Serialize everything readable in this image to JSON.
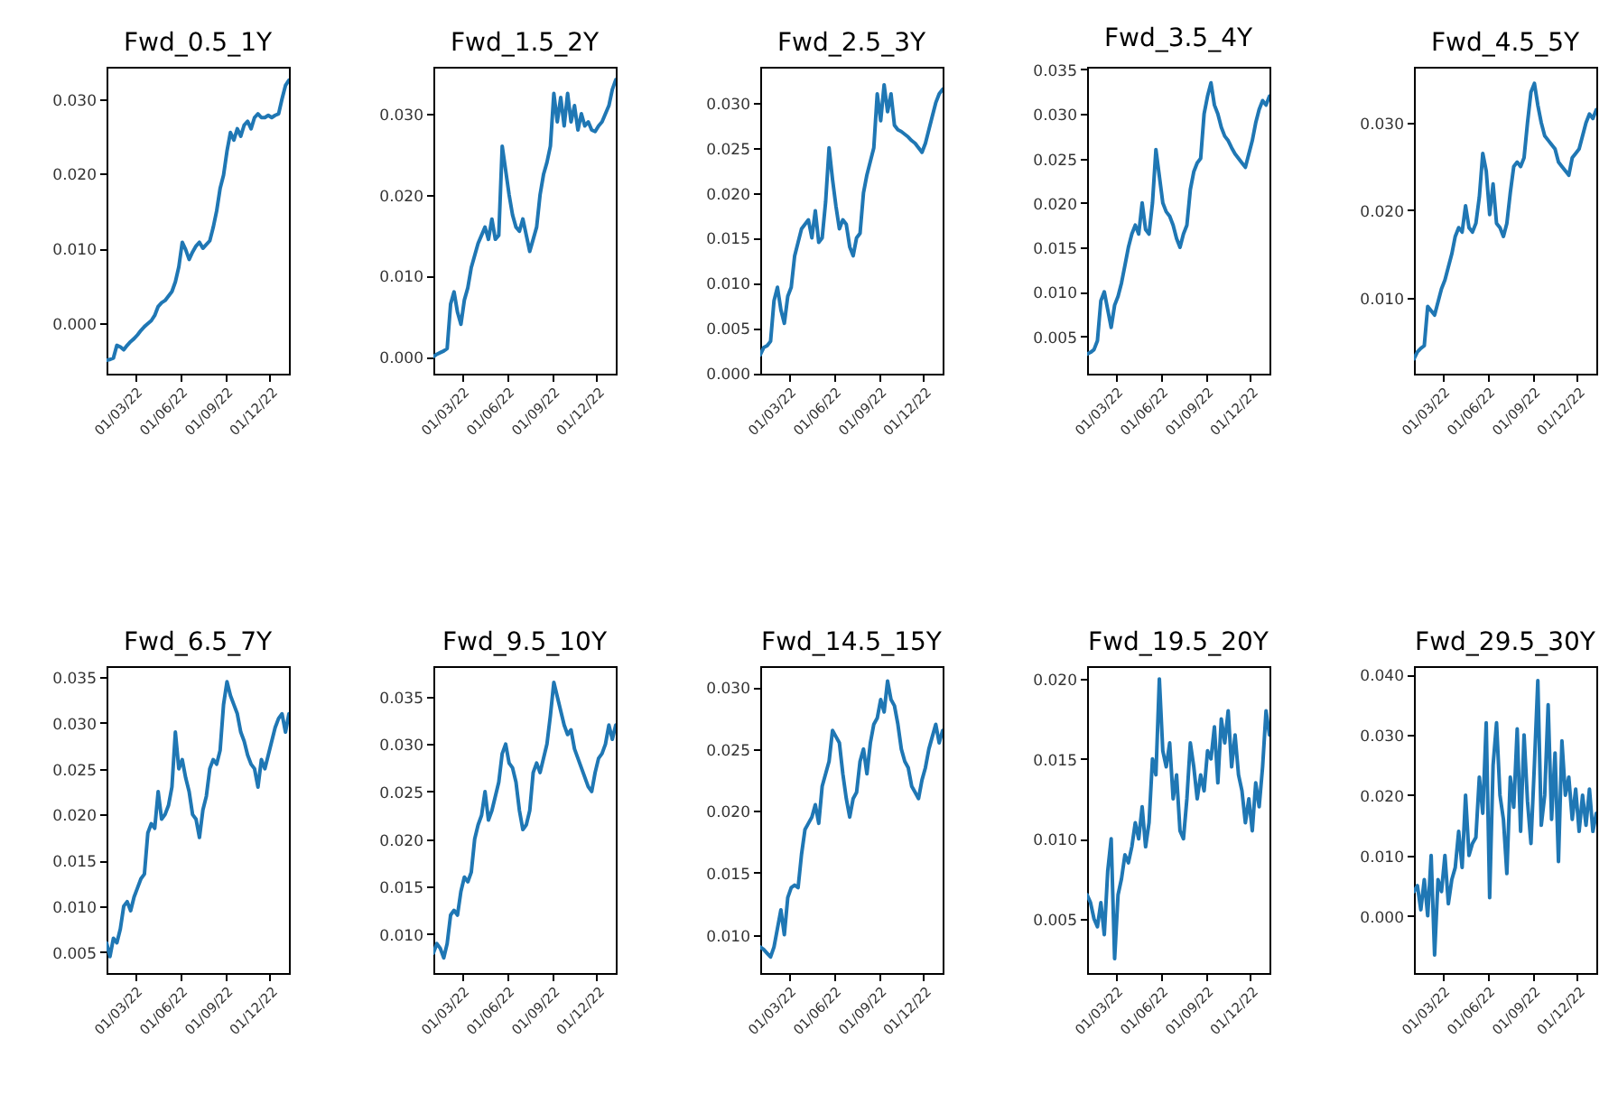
{
  "chart_data": [
    {
      "type": "line",
      "title": "Fwd_0.5_1Y",
      "color": "#1f77b4",
      "x": [
        "2022-01-03",
        "2022-01-10",
        "2022-01-17",
        "2022-01-24",
        "2022-01-31",
        "2022-02-07",
        "2022-02-14",
        "2022-02-21",
        "2022-02-28",
        "2022-03-07",
        "2022-03-14",
        "2022-03-21",
        "2022-03-28",
        "2022-04-04",
        "2022-04-11",
        "2022-04-18",
        "2022-04-25",
        "2022-05-02",
        "2022-05-09",
        "2022-05-16",
        "2022-05-23",
        "2022-05-30",
        "2022-06-06",
        "2022-06-13",
        "2022-06-20",
        "2022-06-27",
        "2022-07-04",
        "2022-07-11",
        "2022-07-18",
        "2022-07-25",
        "2022-08-01",
        "2022-08-08",
        "2022-08-15",
        "2022-08-22",
        "2022-08-29",
        "2022-09-05",
        "2022-09-12",
        "2022-09-19",
        "2022-09-26",
        "2022-10-03",
        "2022-10-10",
        "2022-10-17",
        "2022-10-24",
        "2022-10-31",
        "2022-11-07",
        "2022-11-14",
        "2022-11-21",
        "2022-11-28",
        "2022-12-05",
        "2022-12-12",
        "2022-12-19",
        "2022-12-26",
        "2023-01-02",
        "2023-01-09"
      ],
      "values": [
        -0.005,
        -0.0049,
        -0.0047,
        -0.003,
        -0.0032,
        -0.0036,
        -0.003,
        -0.0025,
        -0.0021,
        -0.0016,
        -0.001,
        -0.0005,
        -0.0001,
        0.0003,
        0.001,
        0.0022,
        0.0027,
        0.003,
        0.0036,
        0.0042,
        0.0055,
        0.0075,
        0.0108,
        0.0098,
        0.0085,
        0.0095,
        0.0103,
        0.0108,
        0.01,
        0.0105,
        0.011,
        0.0128,
        0.015,
        0.018,
        0.0198,
        0.023,
        0.0255,
        0.0245,
        0.026,
        0.025,
        0.0265,
        0.027,
        0.026,
        0.0275,
        0.028,
        0.0275,
        0.0275,
        0.0278,
        0.0275,
        0.0278,
        0.028,
        0.03,
        0.0318,
        0.0325
      ],
      "xlim": [
        "2022-01-03",
        "2023-01-09"
      ],
      "xticks": [
        {
          "value": "2022-03-01",
          "label": "01/03/22"
        },
        {
          "value": "2022-06-01",
          "label": "01/06/22"
        },
        {
          "value": "2022-09-01",
          "label": "01/09/22"
        },
        {
          "value": "2022-12-01",
          "label": "01/12/22"
        }
      ],
      "ylim": [
        -0.0068,
        0.0343
      ],
      "yticks": [
        {
          "value": 0,
          "label": "0.000"
        },
        {
          "value": 0.01,
          "label": "0.010"
        },
        {
          "value": 0.02,
          "label": "0.020"
        },
        {
          "value": 0.03,
          "label": "0.030"
        }
      ]
    },
    {
      "type": "line",
      "title": "Fwd_1.5_2Y",
      "color": "#1f77b4",
      "x": [
        "2022-01-03",
        "2022-01-10",
        "2022-01-17",
        "2022-01-24",
        "2022-01-31",
        "2022-02-07",
        "2022-02-14",
        "2022-02-21",
        "2022-02-28",
        "2022-03-07",
        "2022-03-14",
        "2022-03-21",
        "2022-03-28",
        "2022-04-04",
        "2022-04-11",
        "2022-04-18",
        "2022-04-25",
        "2022-05-02",
        "2022-05-09",
        "2022-05-16",
        "2022-05-23",
        "2022-05-30",
        "2022-06-06",
        "2022-06-13",
        "2022-06-20",
        "2022-06-27",
        "2022-07-04",
        "2022-07-11",
        "2022-07-18",
        "2022-07-25",
        "2022-08-01",
        "2022-08-08",
        "2022-08-15",
        "2022-08-22",
        "2022-08-29",
        "2022-09-05",
        "2022-09-12",
        "2022-09-19",
        "2022-09-26",
        "2022-10-03",
        "2022-10-10",
        "2022-10-17",
        "2022-10-24",
        "2022-10-31",
        "2022-11-07",
        "2022-11-14",
        "2022-11-21",
        "2022-11-28",
        "2022-12-05",
        "2022-12-12",
        "2022-12-19",
        "2022-12-26",
        "2023-01-02",
        "2023-01-09"
      ],
      "values": [
        0,
        0.0003,
        0.0005,
        0.0007,
        0.001,
        0.0065,
        0.008,
        0.0055,
        0.004,
        0.007,
        0.0085,
        0.011,
        0.0125,
        0.014,
        0.015,
        0.016,
        0.0145,
        0.017,
        0.0145,
        0.015,
        0.026,
        0.023,
        0.02,
        0.0175,
        0.016,
        0.0155,
        0.017,
        0.015,
        0.013,
        0.0145,
        0.016,
        0.02,
        0.0225,
        0.024,
        0.026,
        0.0325,
        0.029,
        0.032,
        0.0285,
        0.0325,
        0.029,
        0.031,
        0.028,
        0.03,
        0.0285,
        0.029,
        0.028,
        0.0278,
        0.0285,
        0.029,
        0.03,
        0.031,
        0.033,
        0.0342
      ],
      "xlim": [
        "2022-01-03",
        "2023-01-09"
      ],
      "xticks": [
        {
          "value": "2022-03-01",
          "label": "01/03/22"
        },
        {
          "value": "2022-06-01",
          "label": "01/06/22"
        },
        {
          "value": "2022-09-01",
          "label": "01/09/22"
        },
        {
          "value": "2022-12-01",
          "label": "01/12/22"
        }
      ],
      "ylim": [
        -0.0021,
        0.0358
      ],
      "yticks": [
        {
          "value": 0,
          "label": "0.000"
        },
        {
          "value": 0.01,
          "label": "0.010"
        },
        {
          "value": 0.02,
          "label": "0.020"
        },
        {
          "value": 0.03,
          "label": "0.030"
        }
      ]
    },
    {
      "type": "line",
      "title": "Fwd_2.5_3Y",
      "color": "#1f77b4",
      "x": [
        "2022-01-03",
        "2022-01-10",
        "2022-01-17",
        "2022-01-24",
        "2022-01-31",
        "2022-02-07",
        "2022-02-14",
        "2022-02-21",
        "2022-02-28",
        "2022-03-07",
        "2022-03-14",
        "2022-03-21",
        "2022-03-28",
        "2022-04-04",
        "2022-04-11",
        "2022-04-18",
        "2022-04-25",
        "2022-05-02",
        "2022-05-09",
        "2022-05-16",
        "2022-05-23",
        "2022-05-30",
        "2022-06-06",
        "2022-06-13",
        "2022-06-20",
        "2022-06-27",
        "2022-07-04",
        "2022-07-11",
        "2022-07-18",
        "2022-07-25",
        "2022-08-01",
        "2022-08-08",
        "2022-08-15",
        "2022-08-22",
        "2022-08-29",
        "2022-09-05",
        "2022-09-12",
        "2022-09-19",
        "2022-09-26",
        "2022-10-03",
        "2022-10-10",
        "2022-10-17",
        "2022-10-24",
        "2022-10-31",
        "2022-11-07",
        "2022-11-14",
        "2022-11-21",
        "2022-11-28",
        "2022-12-05",
        "2022-12-12",
        "2022-12-19",
        "2022-12-26",
        "2023-01-02",
        "2023-01-09"
      ],
      "values": [
        0.002,
        0.0028,
        0.003,
        0.0035,
        0.008,
        0.0095,
        0.007,
        0.0055,
        0.0085,
        0.0095,
        0.013,
        0.0145,
        0.016,
        0.0165,
        0.017,
        0.015,
        0.018,
        0.0145,
        0.015,
        0.019,
        0.025,
        0.0215,
        0.0185,
        0.016,
        0.017,
        0.0165,
        0.014,
        0.013,
        0.015,
        0.0155,
        0.02,
        0.022,
        0.0235,
        0.025,
        0.031,
        0.028,
        0.032,
        0.029,
        0.031,
        0.0275,
        0.027,
        0.0268,
        0.0265,
        0.0262,
        0.0258,
        0.0255,
        0.025,
        0.0245,
        0.0255,
        0.027,
        0.0285,
        0.03,
        0.031,
        0.0315
      ],
      "xlim": [
        "2022-01-03",
        "2023-01-09"
      ],
      "xticks": [
        {
          "value": "2022-03-01",
          "label": "01/03/22"
        },
        {
          "value": "2022-06-01",
          "label": "01/06/22"
        },
        {
          "value": "2022-09-01",
          "label": "01/09/22"
        },
        {
          "value": "2022-12-01",
          "label": "01/12/22"
        }
      ],
      "ylim": [
        -0.0001,
        0.034
      ],
      "yticks": [
        {
          "value": 0,
          "label": "0.000"
        },
        {
          "value": 0.005,
          "label": "0.005"
        },
        {
          "value": 0.01,
          "label": "0.010"
        },
        {
          "value": 0.015,
          "label": "0.015"
        },
        {
          "value": 0.02,
          "label": "0.020"
        },
        {
          "value": 0.025,
          "label": "0.025"
        },
        {
          "value": 0.03,
          "label": "0.030"
        }
      ]
    },
    {
      "type": "line",
      "title": "Fwd_3.5_4Y",
      "color": "#1f77b4",
      "x": [
        "2022-01-03",
        "2022-01-10",
        "2022-01-17",
        "2022-01-24",
        "2022-01-31",
        "2022-02-07",
        "2022-02-14",
        "2022-02-21",
        "2022-02-28",
        "2022-03-07",
        "2022-03-14",
        "2022-03-21",
        "2022-03-28",
        "2022-04-04",
        "2022-04-11",
        "2022-04-18",
        "2022-04-25",
        "2022-05-02",
        "2022-05-09",
        "2022-05-16",
        "2022-05-23",
        "2022-05-30",
        "2022-06-06",
        "2022-06-13",
        "2022-06-20",
        "2022-06-27",
        "2022-07-04",
        "2022-07-11",
        "2022-07-18",
        "2022-07-25",
        "2022-08-01",
        "2022-08-08",
        "2022-08-15",
        "2022-08-22",
        "2022-08-29",
        "2022-09-05",
        "2022-09-12",
        "2022-09-19",
        "2022-09-26",
        "2022-10-03",
        "2022-10-10",
        "2022-10-17",
        "2022-10-24",
        "2022-10-31",
        "2022-11-07",
        "2022-11-14",
        "2022-11-21",
        "2022-11-28",
        "2022-12-05",
        "2022-12-12",
        "2022-12-19",
        "2022-12-26",
        "2023-01-02",
        "2023-01-09"
      ],
      "values": [
        0.003,
        0.0032,
        0.0035,
        0.0045,
        0.009,
        0.01,
        0.008,
        0.006,
        0.0085,
        0.0095,
        0.011,
        0.013,
        0.015,
        0.0165,
        0.0175,
        0.0165,
        0.02,
        0.017,
        0.0165,
        0.02,
        0.026,
        0.023,
        0.02,
        0.019,
        0.0185,
        0.0175,
        0.016,
        0.015,
        0.0165,
        0.0175,
        0.0215,
        0.0235,
        0.0245,
        0.025,
        0.03,
        0.032,
        0.0335,
        0.031,
        0.03,
        0.0285,
        0.0275,
        0.027,
        0.0262,
        0.0255,
        0.025,
        0.0245,
        0.024,
        0.0255,
        0.027,
        0.029,
        0.0305,
        0.0315,
        0.031,
        0.032
      ],
      "xlim": [
        "2022-01-03",
        "2023-01-09"
      ],
      "xticks": [
        {
          "value": "2022-03-01",
          "label": "01/03/22"
        },
        {
          "value": "2022-06-01",
          "label": "01/06/22"
        },
        {
          "value": "2022-09-01",
          "label": "01/09/22"
        },
        {
          "value": "2022-12-01",
          "label": "01/12/22"
        }
      ],
      "ylim": [
        0.0008,
        0.0353
      ],
      "yticks": [
        {
          "value": 0.005,
          "label": "0.005"
        },
        {
          "value": 0.01,
          "label": "0.010"
        },
        {
          "value": 0.015,
          "label": "0.015"
        },
        {
          "value": 0.02,
          "label": "0.020"
        },
        {
          "value": 0.025,
          "label": "0.025"
        },
        {
          "value": 0.03,
          "label": "0.030"
        },
        {
          "value": 0.035,
          "label": "0.035"
        }
      ]
    },
    {
      "type": "line",
      "title": "Fwd_4.5_5Y",
      "color": "#1f77b4",
      "x": [
        "2022-01-03",
        "2022-01-10",
        "2022-01-17",
        "2022-01-24",
        "2022-01-31",
        "2022-02-07",
        "2022-02-14",
        "2022-02-21",
        "2022-02-28",
        "2022-03-07",
        "2022-03-14",
        "2022-03-21",
        "2022-03-28",
        "2022-04-04",
        "2022-04-11",
        "2022-04-18",
        "2022-04-25",
        "2022-05-02",
        "2022-05-09",
        "2022-05-16",
        "2022-05-23",
        "2022-05-30",
        "2022-06-06",
        "2022-06-13",
        "2022-06-20",
        "2022-06-27",
        "2022-07-04",
        "2022-07-11",
        "2022-07-18",
        "2022-07-25",
        "2022-08-01",
        "2022-08-08",
        "2022-08-15",
        "2022-08-22",
        "2022-08-29",
        "2022-09-05",
        "2022-09-12",
        "2022-09-19",
        "2022-09-26",
        "2022-10-03",
        "2022-10-10",
        "2022-10-17",
        "2022-10-24",
        "2022-10-31",
        "2022-11-07",
        "2022-11-14",
        "2022-11-21",
        "2022-11-28",
        "2022-12-05",
        "2022-12-12",
        "2022-12-19",
        "2022-12-26",
        "2023-01-02",
        "2023-01-09"
      ],
      "values": [
        0.003,
        0.0038,
        0.0042,
        0.0045,
        0.009,
        0.0085,
        0.008,
        0.0095,
        0.011,
        0.012,
        0.0135,
        0.015,
        0.017,
        0.018,
        0.0175,
        0.0205,
        0.018,
        0.0175,
        0.0185,
        0.0215,
        0.0265,
        0.0245,
        0.0195,
        0.023,
        0.0185,
        0.018,
        0.017,
        0.0185,
        0.022,
        0.025,
        0.0255,
        0.025,
        0.026,
        0.03,
        0.0335,
        0.0345,
        0.032,
        0.03,
        0.0285,
        0.028,
        0.0275,
        0.027,
        0.0255,
        0.025,
        0.0245,
        0.024,
        0.026,
        0.0265,
        0.027,
        0.0285,
        0.03,
        0.031,
        0.0305,
        0.0315
      ],
      "xlim": [
        "2022-01-03",
        "2023-01-09"
      ],
      "xticks": [
        {
          "value": "2022-03-01",
          "label": "01/03/22"
        },
        {
          "value": "2022-06-01",
          "label": "01/06/22"
        },
        {
          "value": "2022-09-01",
          "label": "01/09/22"
        },
        {
          "value": "2022-12-01",
          "label": "01/12/22"
        }
      ],
      "ylim": [
        0.0013,
        0.0364
      ],
      "yticks": [
        {
          "value": 0.01,
          "label": "0.010"
        },
        {
          "value": 0.02,
          "label": "0.020"
        },
        {
          "value": 0.03,
          "label": "0.030"
        }
      ]
    },
    {
      "type": "line",
      "title": "Fwd_6.5_7Y",
      "color": "#1f77b4",
      "x": [
        "2022-01-03",
        "2022-01-10",
        "2022-01-17",
        "2022-01-24",
        "2022-01-31",
        "2022-02-07",
        "2022-02-14",
        "2022-02-21",
        "2022-02-28",
        "2022-03-07",
        "2022-03-14",
        "2022-03-21",
        "2022-03-28",
        "2022-04-04",
        "2022-04-11",
        "2022-04-18",
        "2022-04-25",
        "2022-05-02",
        "2022-05-09",
        "2022-05-16",
        "2022-05-23",
        "2022-05-30",
        "2022-06-06",
        "2022-06-13",
        "2022-06-20",
        "2022-06-27",
        "2022-07-04",
        "2022-07-11",
        "2022-07-18",
        "2022-07-25",
        "2022-08-01",
        "2022-08-08",
        "2022-08-15",
        "2022-08-22",
        "2022-08-29",
        "2022-09-05",
        "2022-09-12",
        "2022-09-19",
        "2022-09-26",
        "2022-10-03",
        "2022-10-10",
        "2022-10-17",
        "2022-10-24",
        "2022-10-31",
        "2022-11-07",
        "2022-11-14",
        "2022-11-21",
        "2022-11-28",
        "2022-12-05",
        "2022-12-12",
        "2022-12-19",
        "2022-12-26",
        "2023-01-02",
        "2023-01-09"
      ],
      "values": [
        0.006,
        0.0045,
        0.0065,
        0.006,
        0.0075,
        0.01,
        0.0105,
        0.0095,
        0.011,
        0.012,
        0.013,
        0.0135,
        0.018,
        0.019,
        0.0185,
        0.0225,
        0.0195,
        0.02,
        0.021,
        0.023,
        0.029,
        0.025,
        0.026,
        0.024,
        0.0225,
        0.02,
        0.0195,
        0.0175,
        0.0205,
        0.022,
        0.025,
        0.026,
        0.0255,
        0.027,
        0.032,
        0.0345,
        0.033,
        0.032,
        0.031,
        0.029,
        0.028,
        0.0265,
        0.0255,
        0.025,
        0.023,
        0.026,
        0.025,
        0.0265,
        0.028,
        0.0295,
        0.0305,
        0.031,
        0.029,
        0.031
      ],
      "xlim": [
        "2022-01-03",
        "2023-01-09"
      ],
      "xticks": [
        {
          "value": "2022-03-01",
          "label": "01/03/22"
        },
        {
          "value": "2022-06-01",
          "label": "01/06/22"
        },
        {
          "value": "2022-09-01",
          "label": "01/09/22"
        },
        {
          "value": "2022-12-01",
          "label": "01/12/22"
        }
      ],
      "ylim": [
        0.0027,
        0.0362
      ],
      "yticks": [
        {
          "value": 0.005,
          "label": "0.005"
        },
        {
          "value": 0.01,
          "label": "0.010"
        },
        {
          "value": 0.015,
          "label": "0.015"
        },
        {
          "value": 0.02,
          "label": "0.020"
        },
        {
          "value": 0.025,
          "label": "0.025"
        },
        {
          "value": 0.03,
          "label": "0.030"
        },
        {
          "value": 0.035,
          "label": "0.035"
        }
      ]
    },
    {
      "type": "line",
      "title": "Fwd_9.5_10Y",
      "color": "#1f77b4",
      "x": [
        "2022-01-03",
        "2022-01-10",
        "2022-01-17",
        "2022-01-24",
        "2022-01-31",
        "2022-02-07",
        "2022-02-14",
        "2022-02-21",
        "2022-02-28",
        "2022-03-07",
        "2022-03-14",
        "2022-03-21",
        "2022-03-28",
        "2022-04-04",
        "2022-04-11",
        "2022-04-18",
        "2022-04-25",
        "2022-05-02",
        "2022-05-09",
        "2022-05-16",
        "2022-05-23",
        "2022-05-30",
        "2022-06-06",
        "2022-06-13",
        "2022-06-20",
        "2022-06-27",
        "2022-07-04",
        "2022-07-11",
        "2022-07-18",
        "2022-07-25",
        "2022-08-01",
        "2022-08-08",
        "2022-08-15",
        "2022-08-22",
        "2022-08-29",
        "2022-09-05",
        "2022-09-12",
        "2022-09-19",
        "2022-09-26",
        "2022-10-03",
        "2022-10-10",
        "2022-10-17",
        "2022-10-24",
        "2022-10-31",
        "2022-11-07",
        "2022-11-14",
        "2022-11-21",
        "2022-11-28",
        "2022-12-05",
        "2022-12-12",
        "2022-12-19",
        "2022-12-26",
        "2023-01-02",
        "2023-01-09"
      ],
      "values": [
        0.008,
        0.009,
        0.0085,
        0.0075,
        0.009,
        0.012,
        0.0125,
        0.012,
        0.0145,
        0.016,
        0.0155,
        0.0165,
        0.02,
        0.0215,
        0.0225,
        0.025,
        0.022,
        0.023,
        0.0245,
        0.026,
        0.029,
        0.03,
        0.028,
        0.0275,
        0.026,
        0.023,
        0.021,
        0.0215,
        0.023,
        0.027,
        0.028,
        0.027,
        0.0285,
        0.03,
        0.033,
        0.0365,
        0.035,
        0.0335,
        0.032,
        0.031,
        0.0315,
        0.0295,
        0.0285,
        0.0275,
        0.0265,
        0.0255,
        0.025,
        0.027,
        0.0285,
        0.029,
        0.03,
        0.032,
        0.0305,
        0.032
      ],
      "xlim": [
        "2022-01-03",
        "2023-01-09"
      ],
      "xticks": [
        {
          "value": "2022-03-01",
          "label": "01/03/22"
        },
        {
          "value": "2022-06-01",
          "label": "01/06/22"
        },
        {
          "value": "2022-09-01",
          "label": "01/09/22"
        },
        {
          "value": "2022-12-01",
          "label": "01/12/22"
        }
      ],
      "ylim": [
        0.0059,
        0.0382
      ],
      "yticks": [
        {
          "value": 0.01,
          "label": "0.010"
        },
        {
          "value": 0.015,
          "label": "0.015"
        },
        {
          "value": 0.02,
          "label": "0.020"
        },
        {
          "value": 0.025,
          "label": "0.025"
        },
        {
          "value": 0.03,
          "label": "0.030"
        },
        {
          "value": 0.035,
          "label": "0.035"
        }
      ]
    },
    {
      "type": "line",
      "title": "Fwd_14.5_15Y",
      "color": "#1f77b4",
      "x": [
        "2022-01-03",
        "2022-01-10",
        "2022-01-17",
        "2022-01-24",
        "2022-01-31",
        "2022-02-07",
        "2022-02-14",
        "2022-02-21",
        "2022-02-28",
        "2022-03-07",
        "2022-03-14",
        "2022-03-21",
        "2022-03-28",
        "2022-04-04",
        "2022-04-11",
        "2022-04-18",
        "2022-04-25",
        "2022-05-02",
        "2022-05-09",
        "2022-05-16",
        "2022-05-23",
        "2022-05-30",
        "2022-06-06",
        "2022-06-13",
        "2022-06-20",
        "2022-06-27",
        "2022-07-04",
        "2022-07-11",
        "2022-07-18",
        "2022-07-25",
        "2022-08-01",
        "2022-08-08",
        "2022-08-15",
        "2022-08-22",
        "2022-08-29",
        "2022-09-05",
        "2022-09-12",
        "2022-09-19",
        "2022-09-26",
        "2022-10-03",
        "2022-10-10",
        "2022-10-17",
        "2022-10-24",
        "2022-10-31",
        "2022-11-07",
        "2022-11-14",
        "2022-11-21",
        "2022-11-28",
        "2022-12-05",
        "2022-12-12",
        "2022-12-19",
        "2022-12-26",
        "2023-01-02",
        "2023-01-09"
      ],
      "values": [
        0.009,
        0.0088,
        0.0085,
        0.0082,
        0.009,
        0.0105,
        0.012,
        0.01,
        0.013,
        0.0138,
        0.014,
        0.0138,
        0.0165,
        0.0185,
        0.019,
        0.0195,
        0.0205,
        0.019,
        0.022,
        0.023,
        0.024,
        0.0265,
        0.026,
        0.0255,
        0.023,
        0.021,
        0.0195,
        0.021,
        0.0215,
        0.024,
        0.025,
        0.023,
        0.0255,
        0.027,
        0.0275,
        0.029,
        0.028,
        0.0305,
        0.029,
        0.0285,
        0.027,
        0.025,
        0.024,
        0.0235,
        0.022,
        0.0215,
        0.021,
        0.0225,
        0.0235,
        0.025,
        0.026,
        0.027,
        0.0255,
        0.0265
      ],
      "xlim": [
        "2022-01-03",
        "2023-01-09"
      ],
      "xticks": [
        {
          "value": "2022-03-01",
          "label": "01/03/22"
        },
        {
          "value": "2022-06-01",
          "label": "01/06/22"
        },
        {
          "value": "2022-09-01",
          "label": "01/09/22"
        },
        {
          "value": "2022-12-01",
          "label": "01/12/22"
        }
      ],
      "ylim": [
        0.0069,
        0.0317
      ],
      "yticks": [
        {
          "value": 0.01,
          "label": "0.010"
        },
        {
          "value": 0.015,
          "label": "0.015"
        },
        {
          "value": 0.02,
          "label": "0.020"
        },
        {
          "value": 0.025,
          "label": "0.025"
        },
        {
          "value": 0.03,
          "label": "0.030"
        }
      ]
    },
    {
      "type": "line",
      "title": "Fwd_19.5_20Y",
      "color": "#1f77b4",
      "x": [
        "2022-01-03",
        "2022-01-10",
        "2022-01-17",
        "2022-01-24",
        "2022-01-31",
        "2022-02-07",
        "2022-02-14",
        "2022-02-21",
        "2022-02-28",
        "2022-03-07",
        "2022-03-14",
        "2022-03-21",
        "2022-03-28",
        "2022-04-04",
        "2022-04-11",
        "2022-04-18",
        "2022-04-25",
        "2022-05-02",
        "2022-05-09",
        "2022-05-16",
        "2022-05-23",
        "2022-05-30",
        "2022-06-06",
        "2022-06-13",
        "2022-06-20",
        "2022-06-27",
        "2022-07-04",
        "2022-07-11",
        "2022-07-18",
        "2022-07-25",
        "2022-08-01",
        "2022-08-08",
        "2022-08-15",
        "2022-08-22",
        "2022-08-29",
        "2022-09-05",
        "2022-09-12",
        "2022-09-19",
        "2022-09-26",
        "2022-10-03",
        "2022-10-10",
        "2022-10-17",
        "2022-10-24",
        "2022-10-31",
        "2022-11-07",
        "2022-11-14",
        "2022-11-21",
        "2022-11-28",
        "2022-12-05",
        "2022-12-12",
        "2022-12-19",
        "2022-12-26",
        "2023-01-02",
        "2023-01-09"
      ],
      "values": [
        0.0065,
        0.006,
        0.005,
        0.0045,
        0.006,
        0.004,
        0.008,
        0.01,
        0.0025,
        0.0065,
        0.0075,
        0.009,
        0.0085,
        0.0095,
        0.011,
        0.01,
        0.012,
        0.0095,
        0.011,
        0.015,
        0.014,
        0.02,
        0.0155,
        0.0145,
        0.016,
        0.0125,
        0.014,
        0.0105,
        0.01,
        0.0125,
        0.016,
        0.0145,
        0.0125,
        0.014,
        0.013,
        0.0155,
        0.015,
        0.017,
        0.0135,
        0.0175,
        0.016,
        0.018,
        0.0145,
        0.0165,
        0.014,
        0.013,
        0.011,
        0.0125,
        0.0105,
        0.0135,
        0.012,
        0.0145,
        0.018,
        0.0165
      ],
      "xlim": [
        "2022-01-03",
        "2023-01-09"
      ],
      "xticks": [
        {
          "value": "2022-03-01",
          "label": "01/03/22"
        },
        {
          "value": "2022-06-01",
          "label": "01/06/22"
        },
        {
          "value": "2022-09-01",
          "label": "01/09/22"
        },
        {
          "value": "2022-12-01",
          "label": "01/12/22"
        }
      ],
      "ylim": [
        0.0016,
        0.0208
      ],
      "yticks": [
        {
          "value": 0.005,
          "label": "0.005"
        },
        {
          "value": 0.01,
          "label": "0.010"
        },
        {
          "value": 0.015,
          "label": "0.015"
        },
        {
          "value": 0.02,
          "label": "0.020"
        }
      ]
    },
    {
      "type": "line",
      "title": "Fwd_29.5_30Y",
      "color": "#1f77b4",
      "x": [
        "2022-01-03",
        "2022-01-10",
        "2022-01-17",
        "2022-01-24",
        "2022-01-31",
        "2022-02-07",
        "2022-02-14",
        "2022-02-21",
        "2022-02-28",
        "2022-03-07",
        "2022-03-14",
        "2022-03-21",
        "2022-03-28",
        "2022-04-04",
        "2022-04-11",
        "2022-04-18",
        "2022-04-25",
        "2022-05-02",
        "2022-05-09",
        "2022-05-16",
        "2022-05-23",
        "2022-05-30",
        "2022-06-06",
        "2022-06-13",
        "2022-06-20",
        "2022-06-27",
        "2022-07-04",
        "2022-07-11",
        "2022-07-18",
        "2022-07-25",
        "2022-08-01",
        "2022-08-08",
        "2022-08-15",
        "2022-08-22",
        "2022-08-29",
        "2022-09-05",
        "2022-09-12",
        "2022-09-19",
        "2022-09-26",
        "2022-10-03",
        "2022-10-10",
        "2022-10-17",
        "2022-10-24",
        "2022-10-31",
        "2022-11-07",
        "2022-11-14",
        "2022-11-21",
        "2022-11-28",
        "2022-12-05",
        "2022-12-12",
        "2022-12-19",
        "2022-12-26",
        "2023-01-02",
        "2023-01-09"
      ],
      "values": [
        0.004,
        0.005,
        0.001,
        0.006,
        0,
        0.01,
        -0.0065,
        0.006,
        0.004,
        0.01,
        0.002,
        0.006,
        0.008,
        0.014,
        0.008,
        0.02,
        0.01,
        0.012,
        0.013,
        0.023,
        0.017,
        0.032,
        0.003,
        0.025,
        0.032,
        0.02,
        0.016,
        0.007,
        0.023,
        0.018,
        0.031,
        0.014,
        0.03,
        0.019,
        0.012,
        0.025,
        0.039,
        0.015,
        0.02,
        0.035,
        0.016,
        0.027,
        0.009,
        0.029,
        0.02,
        0.023,
        0.016,
        0.021,
        0.014,
        0.02,
        0.015,
        0.021,
        0.014,
        0.017
      ],
      "xlim": [
        "2022-01-03",
        "2023-01-09"
      ],
      "xticks": [
        {
          "value": "2022-03-01",
          "label": "01/03/22"
        },
        {
          "value": "2022-06-01",
          "label": "01/06/22"
        },
        {
          "value": "2022-09-01",
          "label": "01/09/22"
        },
        {
          "value": "2022-12-01",
          "label": "01/12/22"
        }
      ],
      "ylim": [
        -0.0095,
        0.0414
      ],
      "yticks": [
        {
          "value": 0,
          "label": "0.000"
        },
        {
          "value": 0.01,
          "label": "0.010"
        },
        {
          "value": 0.02,
          "label": "0.020"
        },
        {
          "value": 0.03,
          "label": "0.030"
        },
        {
          "value": 0.04,
          "label": "0.040"
        }
      ]
    }
  ]
}
